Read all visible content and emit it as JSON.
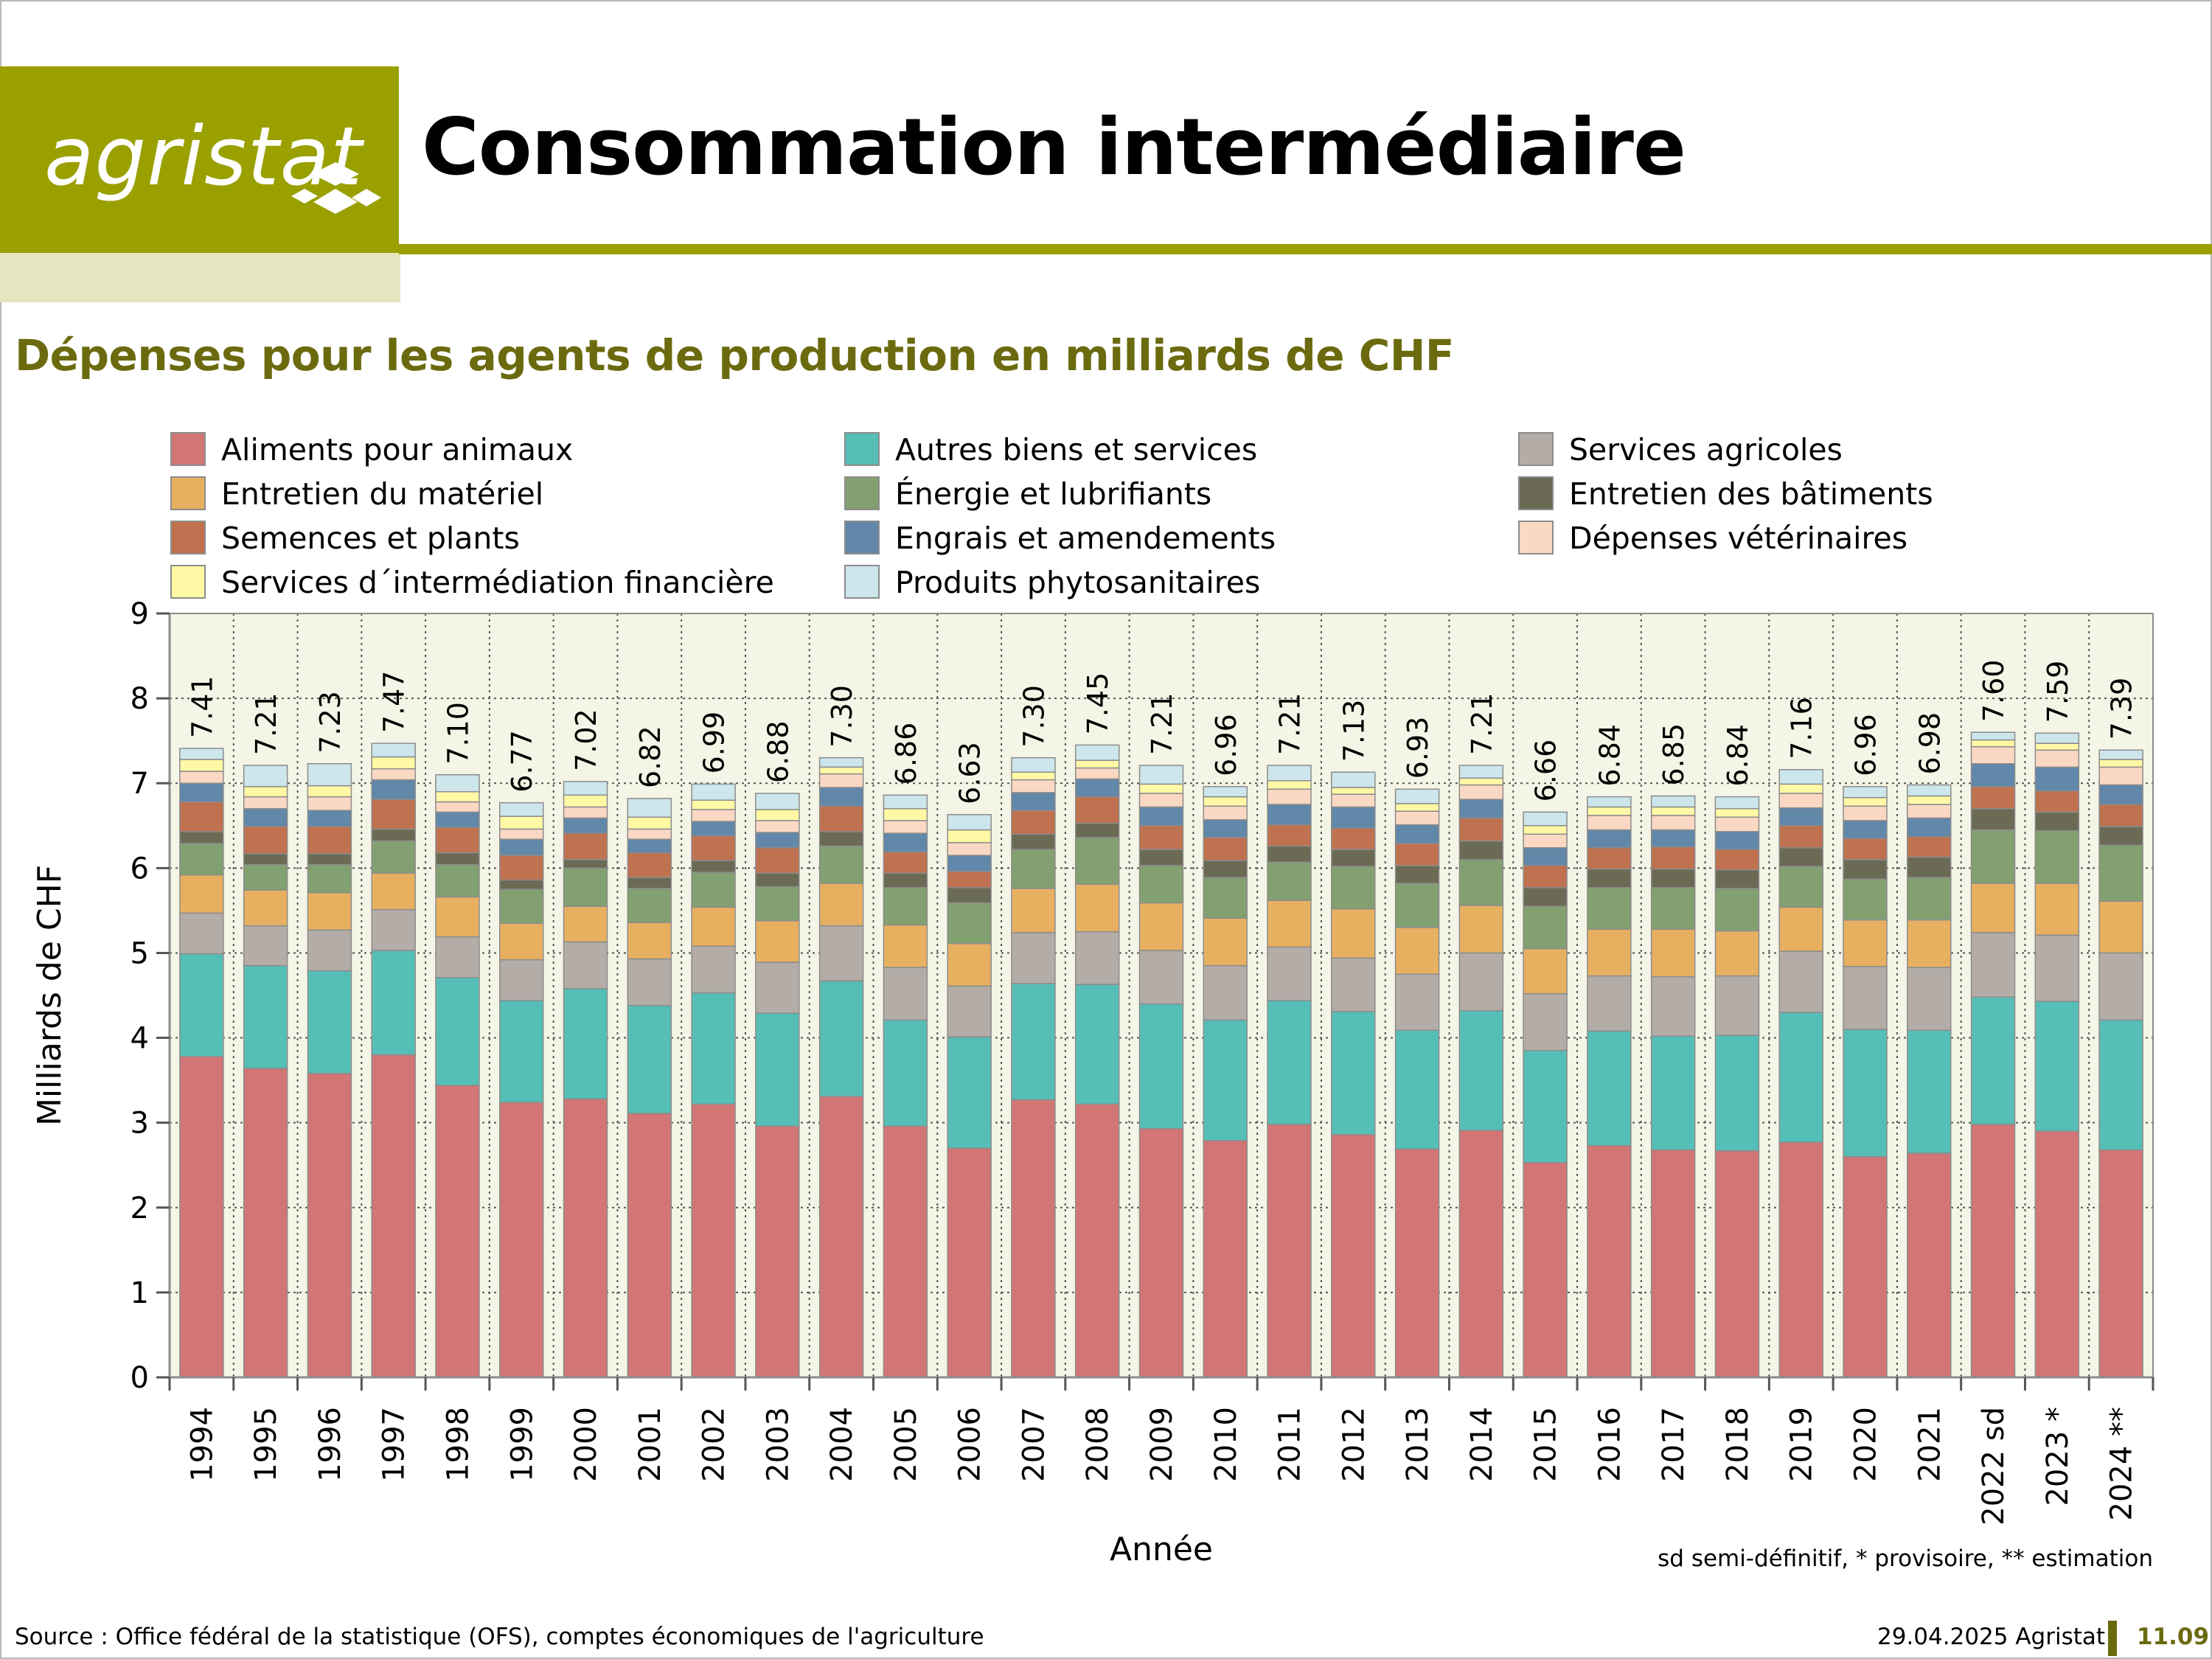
{
  "header": {
    "logo_text": "agristat",
    "title": "Consommation intermédiaire"
  },
  "subtitle": "Dépenses pour les agents de production en milliards de CHF",
  "note": "sd semi-définitif, * provisoire, ** estimation",
  "footer": {
    "source": "Source : Office fédéral de la statistique (OFS), comptes économiques de l'agriculture",
    "date": "29.04.2025 Agristat",
    "page": "11.09"
  },
  "colors": {
    "plot_background": "#f4f5e6",
    "brand_green": "#9aa000",
    "brand_dark": "#6b6a0f"
  },
  "chart_data": {
    "type": "bar",
    "stacked": true,
    "xlabel": "Année",
    "ylabel": "Milliards de CHF",
    "ylim": [
      0,
      9
    ],
    "yticks": [
      0,
      1,
      2,
      3,
      4,
      5,
      6,
      7,
      8,
      9
    ],
    "grid": true,
    "legend_position": "top",
    "categories": [
      "1994",
      "1995",
      "1996",
      "1997",
      "1998",
      "1999",
      "2000",
      "2001",
      "2002",
      "2003",
      "2004",
      "2005",
      "2006",
      "2007",
      "2008",
      "2009",
      "2010",
      "2011",
      "2012",
      "2013",
      "2014",
      "2015",
      "2016",
      "2017",
      "2018",
      "2019",
      "2020",
      "2021",
      "2022 sd",
      "2023 *",
      "2024 **"
    ],
    "totals": [
      "7.41",
      "7.21",
      "7.23",
      "7.47",
      "7.10",
      "6.77",
      "7.02",
      "6.82",
      "6.99",
      "6.88",
      "7.30",
      "6.86",
      "6.63",
      "7.30",
      "7.45",
      "7.21",
      "6.96",
      "7.21",
      "7.13",
      "6.93",
      "7.21",
      "6.66",
      "6.84",
      "6.85",
      "6.84",
      "7.16",
      "6.96",
      "6.98",
      "7.60",
      "7.59",
      "7.39"
    ],
    "series": [
      {
        "name": "Aliments pour animaux",
        "color": "#d27575",
        "values": [
          3.78,
          3.64,
          3.58,
          3.8,
          3.44,
          3.24,
          3.28,
          3.11,
          3.22,
          2.96,
          3.31,
          2.96,
          2.7,
          3.27,
          3.22,
          2.93,
          2.79,
          2.98,
          2.86,
          2.69,
          2.91,
          2.53,
          2.73,
          2.68,
          2.67,
          2.77,
          2.6,
          2.64,
          2.98,
          2.9,
          2.68
        ]
      },
      {
        "name": "Autres biens et services",
        "color": "#55bfb7",
        "values": [
          1.21,
          1.21,
          1.21,
          1.23,
          1.27,
          1.2,
          1.3,
          1.27,
          1.31,
          1.33,
          1.36,
          1.25,
          1.31,
          1.37,
          1.41,
          1.47,
          1.42,
          1.46,
          1.45,
          1.4,
          1.41,
          1.32,
          1.35,
          1.34,
          1.36,
          1.53,
          1.5,
          1.45,
          1.5,
          1.53,
          1.53
        ]
      },
      {
        "name": "Services agricoles",
        "color": "#b3aca7",
        "values": [
          0.48,
          0.47,
          0.48,
          0.48,
          0.48,
          0.48,
          0.55,
          0.55,
          0.55,
          0.6,
          0.65,
          0.62,
          0.6,
          0.6,
          0.62,
          0.63,
          0.64,
          0.63,
          0.63,
          0.66,
          0.68,
          0.67,
          0.65,
          0.7,
          0.7,
          0.72,
          0.74,
          0.74,
          0.76,
          0.78,
          0.79
        ]
      },
      {
        "name": "Entretien du matériel",
        "color": "#e7b061",
        "values": [
          0.45,
          0.42,
          0.44,
          0.43,
          0.47,
          0.43,
          0.42,
          0.43,
          0.46,
          0.49,
          0.5,
          0.5,
          0.5,
          0.52,
          0.56,
          0.56,
          0.56,
          0.55,
          0.58,
          0.55,
          0.56,
          0.53,
          0.55,
          0.56,
          0.53,
          0.52,
          0.55,
          0.56,
          0.58,
          0.61,
          0.61
        ]
      },
      {
        "name": "Énergie et lubrifiants",
        "color": "#82a070",
        "values": [
          0.37,
          0.3,
          0.33,
          0.38,
          0.38,
          0.4,
          0.45,
          0.4,
          0.41,
          0.4,
          0.44,
          0.44,
          0.48,
          0.46,
          0.55,
          0.44,
          0.48,
          0.45,
          0.5,
          0.52,
          0.54,
          0.5,
          0.49,
          0.49,
          0.5,
          0.48,
          0.48,
          0.5,
          0.63,
          0.62,
          0.66
        ]
      },
      {
        "name": "Entretien des bâtiments",
        "color": "#6b6b55",
        "values": [
          0.14,
          0.13,
          0.13,
          0.14,
          0.14,
          0.11,
          0.1,
          0.13,
          0.14,
          0.16,
          0.17,
          0.17,
          0.18,
          0.18,
          0.17,
          0.19,
          0.2,
          0.19,
          0.2,
          0.21,
          0.22,
          0.22,
          0.22,
          0.22,
          0.22,
          0.22,
          0.23,
          0.24,
          0.25,
          0.22,
          0.22
        ]
      },
      {
        "name": "Semences et plants",
        "color": "#c0714f",
        "values": [
          0.35,
          0.32,
          0.32,
          0.35,
          0.3,
          0.29,
          0.31,
          0.29,
          0.29,
          0.3,
          0.3,
          0.25,
          0.19,
          0.28,
          0.31,
          0.28,
          0.27,
          0.25,
          0.25,
          0.26,
          0.27,
          0.26,
          0.25,
          0.26,
          0.24,
          0.26,
          0.25,
          0.24,
          0.26,
          0.25,
          0.26
        ]
      },
      {
        "name": "Engrais et amendements",
        "color": "#6187a9",
        "values": [
          0.22,
          0.21,
          0.19,
          0.23,
          0.18,
          0.19,
          0.18,
          0.16,
          0.17,
          0.18,
          0.22,
          0.22,
          0.19,
          0.21,
          0.21,
          0.22,
          0.21,
          0.24,
          0.25,
          0.22,
          0.22,
          0.21,
          0.21,
          0.2,
          0.21,
          0.21,
          0.21,
          0.22,
          0.27,
          0.28,
          0.23
        ]
      },
      {
        "name": "Dépenses vétérinaires",
        "color": "#fbd8c3",
        "values": [
          0.14,
          0.14,
          0.16,
          0.13,
          0.12,
          0.12,
          0.13,
          0.12,
          0.14,
          0.14,
          0.16,
          0.15,
          0.15,
          0.15,
          0.13,
          0.16,
          0.16,
          0.18,
          0.15,
          0.16,
          0.17,
          0.16,
          0.17,
          0.17,
          0.17,
          0.17,
          0.17,
          0.16,
          0.2,
          0.2,
          0.21
        ]
      },
      {
        "name": "Services d´intermédiation financière",
        "color": "#fff8a5",
        "values": [
          0.14,
          0.12,
          0.13,
          0.14,
          0.12,
          0.15,
          0.14,
          0.14,
          0.11,
          0.13,
          0.08,
          0.14,
          0.15,
          0.09,
          0.09,
          0.11,
          0.11,
          0.1,
          0.08,
          0.09,
          0.08,
          0.1,
          0.1,
          0.1,
          0.1,
          0.11,
          0.1,
          0.1,
          0.08,
          0.08,
          0.09
        ]
      },
      {
        "name": "Produits phytosanitaires",
        "color": "#cce6ec",
        "values": [
          0.13,
          0.25,
          0.26,
          0.16,
          0.2,
          0.16,
          0.16,
          0.22,
          0.19,
          0.19,
          0.11,
          0.16,
          0.18,
          0.17,
          0.18,
          0.22,
          0.12,
          0.18,
          0.18,
          0.17,
          0.15,
          0.16,
          0.12,
          0.13,
          0.14,
          0.17,
          0.13,
          0.13,
          0.09,
          0.12,
          0.11
        ]
      }
    ]
  }
}
